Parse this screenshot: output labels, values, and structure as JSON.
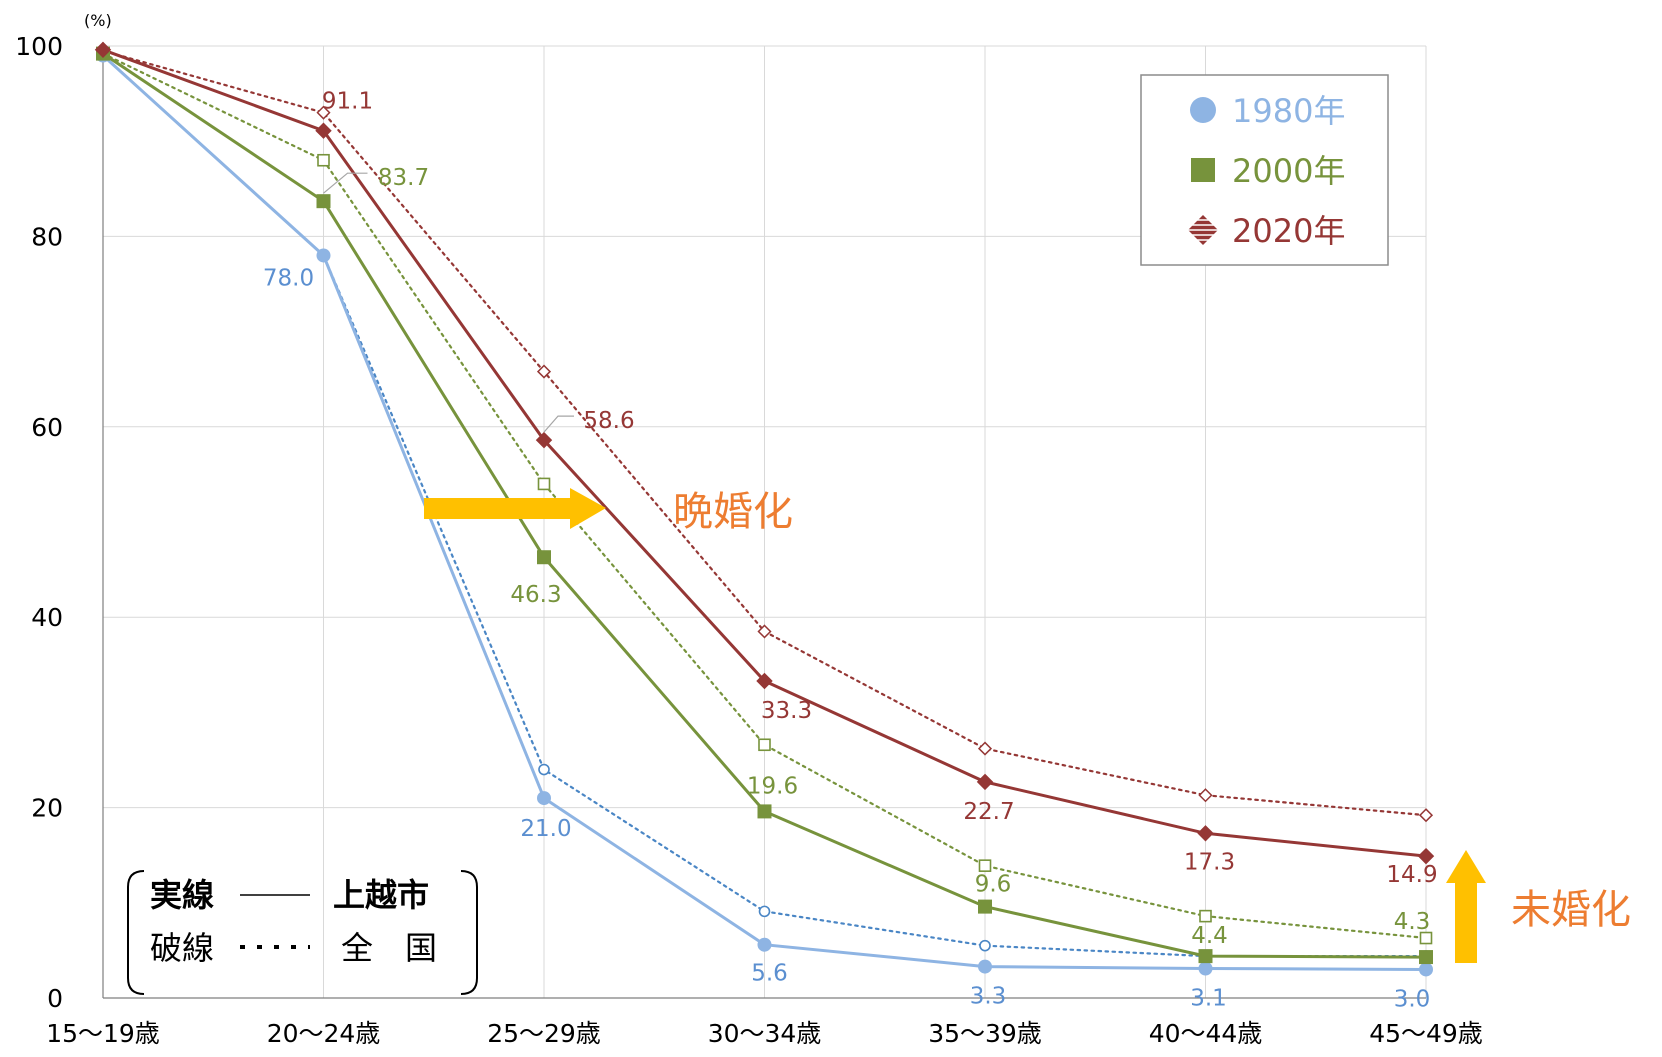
{
  "chart_data": {
    "type": "line",
    "unit_label": "(%)",
    "ylim": [
      0,
      100
    ],
    "y_ticks": [
      0,
      20,
      40,
      60,
      80,
      100
    ],
    "grid": true,
    "categories": [
      "15～19歳",
      "20～24歳",
      "25～29歳",
      "30～34歳",
      "35～39歳",
      "40～44歳",
      "45～49歳"
    ],
    "series": [
      {
        "name": "1980年",
        "scope": "上越市",
        "style": "solid",
        "color": "#8eb4e3",
        "label_color": "#5b8fd0",
        "values": [
          99.0,
          78.0,
          21.0,
          5.6,
          3.3,
          3.1,
          3.0
        ]
      },
      {
        "name": "2000年",
        "scope": "上越市",
        "style": "solid",
        "color": "#77933c",
        "label_color": "#77933c",
        "values": [
          99.2,
          83.7,
          46.3,
          19.6,
          9.6,
          4.4,
          4.3
        ]
      },
      {
        "name": "2020年",
        "scope": "上越市",
        "style": "solid",
        "color": "#953735",
        "label_color": "#953735",
        "values": [
          99.6,
          91.1,
          58.6,
          33.3,
          22.7,
          17.3,
          14.9
        ]
      },
      {
        "name": "1980年",
        "scope": "全国",
        "style": "dotted",
        "color": "#4a86c5",
        "values": [
          99.0,
          78.0,
          24.0,
          9.1,
          5.5,
          4.4,
          4.4
        ]
      },
      {
        "name": "2000年",
        "scope": "全国",
        "style": "dotted",
        "color": "#77933c",
        "values": [
          99.2,
          88.0,
          54.0,
          26.6,
          13.9,
          8.6,
          6.3
        ]
      },
      {
        "name": "2020年",
        "scope": "全国",
        "style": "dotted",
        "color": "#953735",
        "values": [
          99.5,
          93.0,
          65.8,
          38.5,
          26.2,
          21.3,
          19.2
        ]
      }
    ],
    "data_labels": [
      [
        "",
        "78.0",
        "21.0",
        "5.6",
        "3.3",
        "3.1",
        "3.0"
      ],
      [
        "",
        "83.7",
        "46.3",
        "19.6",
        "9.6",
        "4.4",
        "4.3"
      ],
      [
        "",
        "91.1",
        "58.6",
        "33.3",
        "22.7",
        "17.3",
        "14.9"
      ]
    ],
    "legend": {
      "placement": "top-right",
      "entries": [
        {
          "label": "1980年",
          "marker": "circle",
          "color": "#8eb4e3"
        },
        {
          "label": "2000年",
          "marker": "square",
          "color": "#77933c"
        },
        {
          "label": "2020年",
          "marker": "diamond",
          "color": "#953735"
        }
      ]
    },
    "line_key": {
      "solid_label": "実線",
      "solid_meaning": "上越市",
      "dotted_label": "破線",
      "dotted_meaning": "全　国"
    },
    "annotations": [
      {
        "text": "晩婚化",
        "color": "#ed7d31",
        "arrow": "right",
        "arrow_color": "#ffc000"
      },
      {
        "text": "未婚化",
        "color": "#ed7d31",
        "arrow": "up",
        "arrow_color": "#ffc000"
      }
    ]
  }
}
